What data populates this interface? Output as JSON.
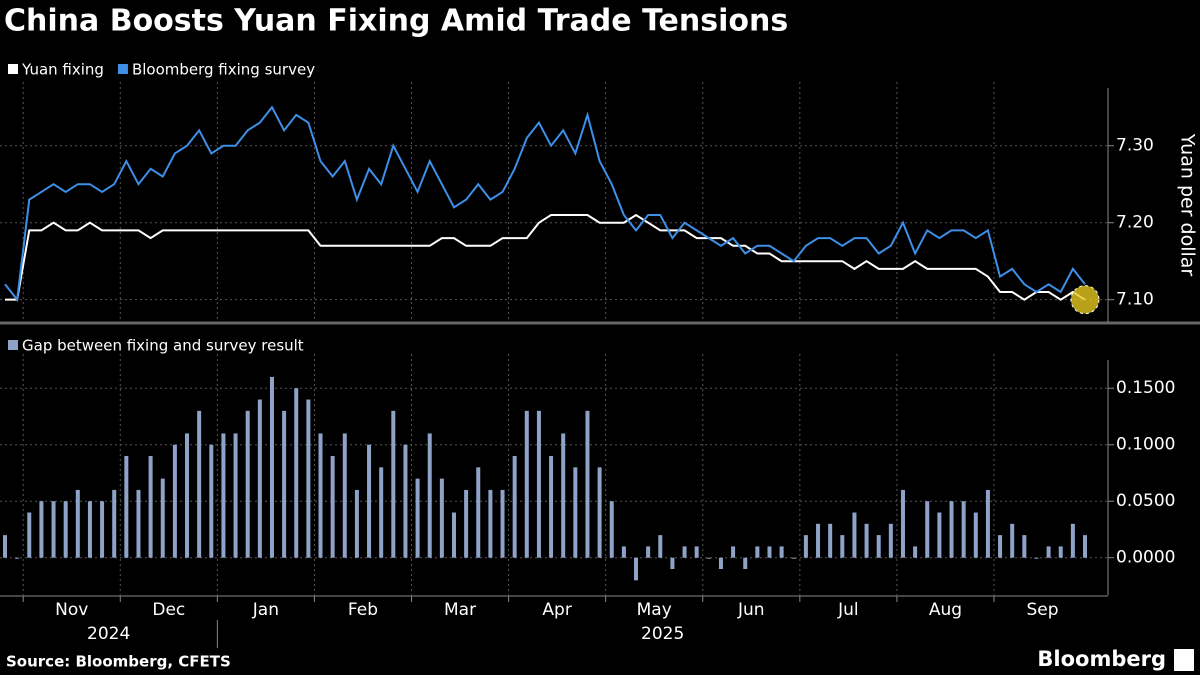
{
  "chart_data": [
    {
      "type": "line",
      "title": "China Boosts Yuan Fixing Amid Trade Tensions",
      "y_label": "Yuan per dollar",
      "series": [
        {
          "name": "Yuan fixing",
          "color": "#ffffff",
          "values": [
            7.1,
            7.1,
            7.19,
            7.19,
            7.2,
            7.19,
            7.19,
            7.2,
            7.19,
            7.19,
            7.19,
            7.19,
            7.18,
            7.19,
            7.19,
            7.19,
            7.19,
            7.19,
            7.19,
            7.19,
            7.19,
            7.19,
            7.19,
            7.19,
            7.19,
            7.19,
            7.17,
            7.17,
            7.17,
            7.17,
            7.17,
            7.17,
            7.17,
            7.17,
            7.17,
            7.17,
            7.18,
            7.18,
            7.17,
            7.17,
            7.17,
            7.18,
            7.18,
            7.18,
            7.2,
            7.21,
            7.21,
            7.21,
            7.21,
            7.2,
            7.2,
            7.2,
            7.21,
            7.2,
            7.19,
            7.19,
            7.19,
            7.18,
            7.18,
            7.18,
            7.17,
            7.17,
            7.16,
            7.16,
            7.15,
            7.15,
            7.15,
            7.15,
            7.15,
            7.15,
            7.14,
            7.15,
            7.14,
            7.14,
            7.14,
            7.15,
            7.14,
            7.14,
            7.14,
            7.14,
            7.14,
            7.13,
            7.11,
            7.11,
            7.1,
            7.11,
            7.11,
            7.1,
            7.11,
            7.1
          ]
        },
        {
          "name": "Bloomberg fixing survey",
          "color": "#3d8fe8",
          "values": [
            7.12,
            7.1,
            7.23,
            7.24,
            7.25,
            7.24,
            7.25,
            7.25,
            7.24,
            7.25,
            7.28,
            7.25,
            7.27,
            7.26,
            7.29,
            7.3,
            7.32,
            7.29,
            7.3,
            7.3,
            7.32,
            7.33,
            7.35,
            7.32,
            7.34,
            7.33,
            7.28,
            7.26,
            7.28,
            7.23,
            7.27,
            7.25,
            7.3,
            7.27,
            7.24,
            7.28,
            7.25,
            7.22,
            7.23,
            7.25,
            7.23,
            7.24,
            7.27,
            7.31,
            7.33,
            7.3,
            7.32,
            7.29,
            7.34,
            7.28,
            7.25,
            7.21,
            7.19,
            7.21,
            7.21,
            7.18,
            7.2,
            7.19,
            7.18,
            7.17,
            7.18,
            7.16,
            7.17,
            7.17,
            7.16,
            7.15,
            7.17,
            7.18,
            7.18,
            7.17,
            7.18,
            7.18,
            7.16,
            7.17,
            7.2,
            7.16,
            7.19,
            7.18,
            7.19,
            7.19,
            7.18,
            7.19,
            7.13,
            7.14,
            7.12,
            7.11,
            7.12,
            7.11,
            7.14,
            7.12
          ]
        }
      ],
      "ylim": [
        7.071,
        7.375
      ],
      "yticks": [
        {
          "value": 7.1,
          "label": "7.10"
        },
        {
          "value": 7.2,
          "label": "7.20"
        },
        {
          "value": 7.3,
          "label": "7.30"
        }
      ],
      "grid": true
    },
    {
      "type": "bar",
      "categories": [
        null,
        null,
        "Nov",
        null,
        null,
        null,
        null,
        null,
        null,
        null,
        "Dec",
        null,
        null,
        null,
        null,
        null,
        null,
        null,
        "Jan",
        null,
        null,
        null,
        null,
        null,
        null,
        null,
        "Feb",
        null,
        null,
        null,
        null,
        null,
        null,
        null,
        "Mar",
        null,
        null,
        null,
        null,
        null,
        null,
        null,
        "Apr",
        null,
        null,
        null,
        null,
        null,
        null,
        null,
        "May",
        null,
        null,
        null,
        null,
        null,
        null,
        null,
        "Jun",
        null,
        null,
        null,
        null,
        null,
        null,
        null,
        "Jul",
        null,
        null,
        null,
        null,
        null,
        null,
        null,
        "Aug",
        null,
        null,
        null,
        null,
        null,
        null,
        null,
        "Sep",
        null,
        null,
        null,
        null,
        null,
        null,
        null
      ],
      "groups": [
        "2024",
        null,
        null,
        null,
        null,
        null,
        null,
        null,
        null,
        null,
        null,
        null,
        null,
        null,
        null,
        null,
        null,
        null,
        "2025",
        null,
        null,
        null,
        null,
        null,
        null,
        null,
        null,
        null,
        null,
        null,
        null,
        null,
        null,
        null,
        null,
        null,
        null,
        null,
        null,
        null,
        null,
        null,
        null,
        null,
        null,
        null,
        null,
        null,
        null,
        null,
        null,
        null,
        null,
        null,
        null,
        null,
        null,
        null,
        null,
        null,
        null,
        null,
        null,
        null,
        null,
        null,
        null,
        null,
        null,
        null,
        null,
        null,
        null,
        null,
        null,
        null,
        null,
        null,
        null,
        null,
        null,
        null,
        null,
        null,
        null,
        null,
        null,
        null,
        null,
        null
      ],
      "series": [
        {
          "name": "Gap between fixing and survey result",
          "color": "#8fa3c9",
          "values": [
            0.02,
            0,
            0.04,
            0.05,
            0.05,
            0.05,
            0.06,
            0.05,
            0.05,
            0.06,
            0.09,
            0.06,
            0.09,
            0.07,
            0.1,
            0.11,
            0.13,
            0.1,
            0.11,
            0.11,
            0.13,
            0.14,
            0.16,
            0.13,
            0.15,
            0.14,
            0.11,
            0.09,
            0.11,
            0.06,
            0.1,
            0.08,
            0.13,
            0.1,
            0.07,
            0.11,
            0.07,
            0.04,
            0.06,
            0.08,
            0.06,
            0.06,
            0.09,
            0.13,
            0.13,
            0.09,
            0.11,
            0.08,
            0.13,
            0.08,
            0.05,
            0.01,
            -0.02,
            0.01,
            0.02,
            -0.01,
            0.01,
            0.01,
            0,
            -0.01,
            0.01,
            -0.01,
            0.01,
            0.01,
            0.01,
            0,
            0.02,
            0.03,
            0.03,
            0.02,
            0.04,
            0.03,
            0.02,
            0.03,
            0.06,
            0.01,
            0.05,
            0.04,
            0.05,
            0.05,
            0.04,
            0.06,
            0.02,
            0.03,
            0.02,
            0,
            0.01,
            0.01,
            0.03,
            0.02
          ]
        }
      ],
      "ylim": [
        -0.033,
        0.175
      ],
      "yticks": [
        {
          "value": 0,
          "label": "0.0000"
        },
        {
          "value": 0.05,
          "label": "0.0500"
        },
        {
          "value": 0.1,
          "label": "0.1000"
        },
        {
          "value": 0.15,
          "label": "0.1500"
        }
      ],
      "grid": true
    }
  ],
  "source": "Source: Bloomberg, CFETS",
  "logo": "Bloomberg"
}
